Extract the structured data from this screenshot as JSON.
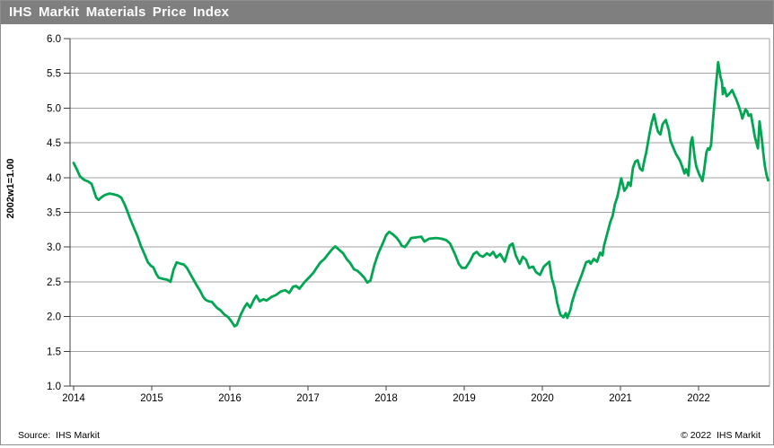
{
  "titlebar": {
    "title": "IHS Markit Materials Price Index",
    "bg_color": "#7f7f7f",
    "text_color": "#ffffff"
  },
  "footer": {
    "source": "Source:  IHS Markit",
    "copyright": "© 2022  IHS Markit"
  },
  "chart_data": {
    "type": "line",
    "title": "IHS Markit Materials Price Index",
    "xlabel": "",
    "ylabel": "2002w1=1.00",
    "xlim": [
      2014,
      2022.95
    ],
    "ylim": [
      1.0,
      6.0
    ],
    "grid": "horizontal",
    "legend": "none",
    "line_color": "#00a651",
    "grid_color": "#a3a3a3",
    "axis_color": "#3f3f3f",
    "x_ticks": [
      2014,
      2015,
      2016,
      2017,
      2018,
      2019,
      2020,
      2021,
      2022
    ],
    "y_ticks": [
      1.0,
      1.5,
      2.0,
      2.5,
      3.0,
      3.5,
      4.0,
      4.5,
      5.0,
      5.5,
      6.0
    ],
    "series": [
      {
        "name": "IHS Markit Materials Price Index (2002w1=1.00)",
        "points": [
          [
            2014.0,
            4.21
          ],
          [
            2014.04,
            4.12
          ],
          [
            2014.08,
            4.02
          ],
          [
            2014.13,
            3.97
          ],
          [
            2014.19,
            3.94
          ],
          [
            2014.23,
            3.91
          ],
          [
            2014.26,
            3.81
          ],
          [
            2014.29,
            3.71
          ],
          [
            2014.32,
            3.68
          ],
          [
            2014.36,
            3.72
          ],
          [
            2014.4,
            3.75
          ],
          [
            2014.46,
            3.77
          ],
          [
            2014.51,
            3.76
          ],
          [
            2014.57,
            3.74
          ],
          [
            2014.61,
            3.71
          ],
          [
            2014.65,
            3.62
          ],
          [
            2014.69,
            3.51
          ],
          [
            2014.73,
            3.39
          ],
          [
            2014.77,
            3.28
          ],
          [
            2014.82,
            3.15
          ],
          [
            2014.86,
            3.02
          ],
          [
            2014.91,
            2.89
          ],
          [
            2014.95,
            2.78
          ],
          [
            2014.99,
            2.73
          ],
          [
            2015.02,
            2.71
          ],
          [
            2015.06,
            2.61
          ],
          [
            2015.09,
            2.56
          ],
          [
            2015.15,
            2.54
          ],
          [
            2015.2,
            2.53
          ],
          [
            2015.24,
            2.5
          ],
          [
            2015.28,
            2.68
          ],
          [
            2015.32,
            2.78
          ],
          [
            2015.37,
            2.76
          ],
          [
            2015.41,
            2.75
          ],
          [
            2015.45,
            2.7
          ],
          [
            2015.49,
            2.62
          ],
          [
            2015.54,
            2.52
          ],
          [
            2015.58,
            2.44
          ],
          [
            2015.62,
            2.37
          ],
          [
            2015.66,
            2.28
          ],
          [
            2015.69,
            2.24
          ],
          [
            2015.73,
            2.22
          ],
          [
            2015.77,
            2.21
          ],
          [
            2015.8,
            2.17
          ],
          [
            2015.84,
            2.12
          ],
          [
            2015.88,
            2.09
          ],
          [
            2015.93,
            2.03
          ],
          [
            2015.98,
            1.99
          ],
          [
            2016.02,
            1.93
          ],
          [
            2016.06,
            1.86
          ],
          [
            2016.09,
            1.88
          ],
          [
            2016.14,
            2.03
          ],
          [
            2016.19,
            2.14
          ],
          [
            2016.22,
            2.19
          ],
          [
            2016.26,
            2.13
          ],
          [
            2016.31,
            2.25
          ],
          [
            2016.34,
            2.3
          ],
          [
            2016.38,
            2.22
          ],
          [
            2016.43,
            2.25
          ],
          [
            2016.47,
            2.23
          ],
          [
            2016.53,
            2.28
          ],
          [
            2016.59,
            2.31
          ],
          [
            2016.65,
            2.36
          ],
          [
            2016.71,
            2.38
          ],
          [
            2016.76,
            2.34
          ],
          [
            2016.81,
            2.43
          ],
          [
            2016.85,
            2.44
          ],
          [
            2016.89,
            2.4
          ],
          [
            2016.96,
            2.5
          ],
          [
            2017.02,
            2.57
          ],
          [
            2017.07,
            2.63
          ],
          [
            2017.11,
            2.7
          ],
          [
            2017.16,
            2.78
          ],
          [
            2017.21,
            2.83
          ],
          [
            2017.26,
            2.9
          ],
          [
            2017.31,
            2.97
          ],
          [
            2017.35,
            3.01
          ],
          [
            2017.4,
            2.96
          ],
          [
            2017.45,
            2.91
          ],
          [
            2017.5,
            2.82
          ],
          [
            2017.54,
            2.77
          ],
          [
            2017.59,
            2.68
          ],
          [
            2017.63,
            2.66
          ],
          [
            2017.67,
            2.62
          ],
          [
            2017.72,
            2.56
          ],
          [
            2017.76,
            2.49
          ],
          [
            2017.8,
            2.52
          ],
          [
            2017.85,
            2.74
          ],
          [
            2017.9,
            2.91
          ],
          [
            2017.96,
            3.06
          ],
          [
            2018.0,
            3.17
          ],
          [
            2018.04,
            3.22
          ],
          [
            2018.09,
            3.18
          ],
          [
            2018.13,
            3.14
          ],
          [
            2018.17,
            3.08
          ],
          [
            2018.2,
            3.02
          ],
          [
            2018.24,
            3.0
          ],
          [
            2018.28,
            3.06
          ],
          [
            2018.32,
            3.13
          ],
          [
            2018.39,
            3.14
          ],
          [
            2018.45,
            3.15
          ],
          [
            2018.49,
            3.08
          ],
          [
            2018.55,
            3.12
          ],
          [
            2018.64,
            3.13
          ],
          [
            2018.71,
            3.12
          ],
          [
            2018.77,
            3.1
          ],
          [
            2018.82,
            3.05
          ],
          [
            2018.88,
            2.9
          ],
          [
            2018.93,
            2.76
          ],
          [
            2018.97,
            2.7
          ],
          [
            2019.02,
            2.7
          ],
          [
            2019.08,
            2.81
          ],
          [
            2019.12,
            2.9
          ],
          [
            2019.16,
            2.93
          ],
          [
            2019.2,
            2.88
          ],
          [
            2019.24,
            2.86
          ],
          [
            2019.29,
            2.91
          ],
          [
            2019.33,
            2.88
          ],
          [
            2019.37,
            2.93
          ],
          [
            2019.41,
            2.85
          ],
          [
            2019.46,
            2.9
          ],
          [
            2019.52,
            2.79
          ],
          [
            2019.58,
            3.02
          ],
          [
            2019.62,
            3.05
          ],
          [
            2019.66,
            2.88
          ],
          [
            2019.71,
            2.76
          ],
          [
            2019.75,
            2.86
          ],
          [
            2019.79,
            2.82
          ],
          [
            2019.83,
            2.7
          ],
          [
            2019.88,
            2.72
          ],
          [
            2019.92,
            2.64
          ],
          [
            2019.97,
            2.6
          ],
          [
            2020.02,
            2.72
          ],
          [
            2020.06,
            2.76
          ],
          [
            2020.09,
            2.79
          ],
          [
            2020.12,
            2.56
          ],
          [
            2020.16,
            2.4
          ],
          [
            2020.19,
            2.2
          ],
          [
            2020.23,
            2.03
          ],
          [
            2020.27,
            1.99
          ],
          [
            2020.3,
            2.05
          ],
          [
            2020.32,
            1.98
          ],
          [
            2020.36,
            2.1
          ],
          [
            2020.38,
            2.21
          ],
          [
            2020.42,
            2.35
          ],
          [
            2020.47,
            2.5
          ],
          [
            2020.51,
            2.62
          ],
          [
            2020.56,
            2.78
          ],
          [
            2020.6,
            2.8
          ],
          [
            2020.62,
            2.76
          ],
          [
            2020.66,
            2.83
          ],
          [
            2020.7,
            2.79
          ],
          [
            2020.74,
            2.92
          ],
          [
            2020.77,
            2.88
          ],
          [
            2020.79,
            3.02
          ],
          [
            2020.83,
            3.19
          ],
          [
            2020.87,
            3.36
          ],
          [
            2020.9,
            3.45
          ],
          [
            2020.93,
            3.62
          ],
          [
            2020.96,
            3.72
          ],
          [
            2020.99,
            3.88
          ],
          [
            2021.01,
            3.99
          ],
          [
            2021.05,
            3.81
          ],
          [
            2021.08,
            3.86
          ],
          [
            2021.1,
            3.93
          ],
          [
            2021.13,
            3.88
          ],
          [
            2021.16,
            4.14
          ],
          [
            2021.19,
            4.23
          ],
          [
            2021.22,
            4.25
          ],
          [
            2021.25,
            4.13
          ],
          [
            2021.28,
            4.1
          ],
          [
            2021.31,
            4.27
          ],
          [
            2021.33,
            4.36
          ],
          [
            2021.37,
            4.62
          ],
          [
            2021.4,
            4.79
          ],
          [
            2021.43,
            4.91
          ],
          [
            2021.46,
            4.75
          ],
          [
            2021.48,
            4.66
          ],
          [
            2021.51,
            4.62
          ],
          [
            2021.54,
            4.77
          ],
          [
            2021.58,
            4.83
          ],
          [
            2021.62,
            4.68
          ],
          [
            2021.64,
            4.53
          ],
          [
            2021.68,
            4.42
          ],
          [
            2021.71,
            4.34
          ],
          [
            2021.76,
            4.25
          ],
          [
            2021.79,
            4.16
          ],
          [
            2021.82,
            4.06
          ],
          [
            2021.84,
            4.12
          ],
          [
            2021.87,
            4.03
          ],
          [
            2021.9,
            4.5
          ],
          [
            2021.92,
            4.58
          ],
          [
            2021.95,
            4.29
          ],
          [
            2021.97,
            4.16
          ],
          [
            2022.01,
            4.04
          ],
          [
            2022.03,
            4.0
          ],
          [
            2022.05,
            3.95
          ],
          [
            2022.07,
            4.1
          ],
          [
            2022.1,
            4.36
          ],
          [
            2022.12,
            4.42
          ],
          [
            2022.14,
            4.4
          ],
          [
            2022.16,
            4.47
          ],
          [
            2022.18,
            4.77
          ],
          [
            2022.2,
            5.03
          ],
          [
            2022.22,
            5.29
          ],
          [
            2022.25,
            5.66
          ],
          [
            2022.28,
            5.45
          ],
          [
            2022.3,
            5.37
          ],
          [
            2022.31,
            5.2
          ],
          [
            2022.33,
            5.29
          ],
          [
            2022.36,
            5.17
          ],
          [
            2022.39,
            5.2
          ],
          [
            2022.43,
            5.26
          ],
          [
            2022.46,
            5.18
          ],
          [
            2022.48,
            5.13
          ],
          [
            2022.51,
            5.04
          ],
          [
            2022.54,
            4.94
          ],
          [
            2022.56,
            4.85
          ],
          [
            2022.6,
            4.98
          ],
          [
            2022.62,
            4.96
          ],
          [
            2022.64,
            4.89
          ],
          [
            2022.67,
            4.91
          ],
          [
            2022.7,
            4.72
          ],
          [
            2022.72,
            4.59
          ],
          [
            2022.76,
            4.42
          ],
          [
            2022.78,
            4.81
          ],
          [
            2022.81,
            4.55
          ],
          [
            2022.83,
            4.34
          ],
          [
            2022.85,
            4.16
          ],
          [
            2022.87,
            4.04
          ],
          [
            2022.89,
            3.96
          ]
        ]
      }
    ]
  }
}
